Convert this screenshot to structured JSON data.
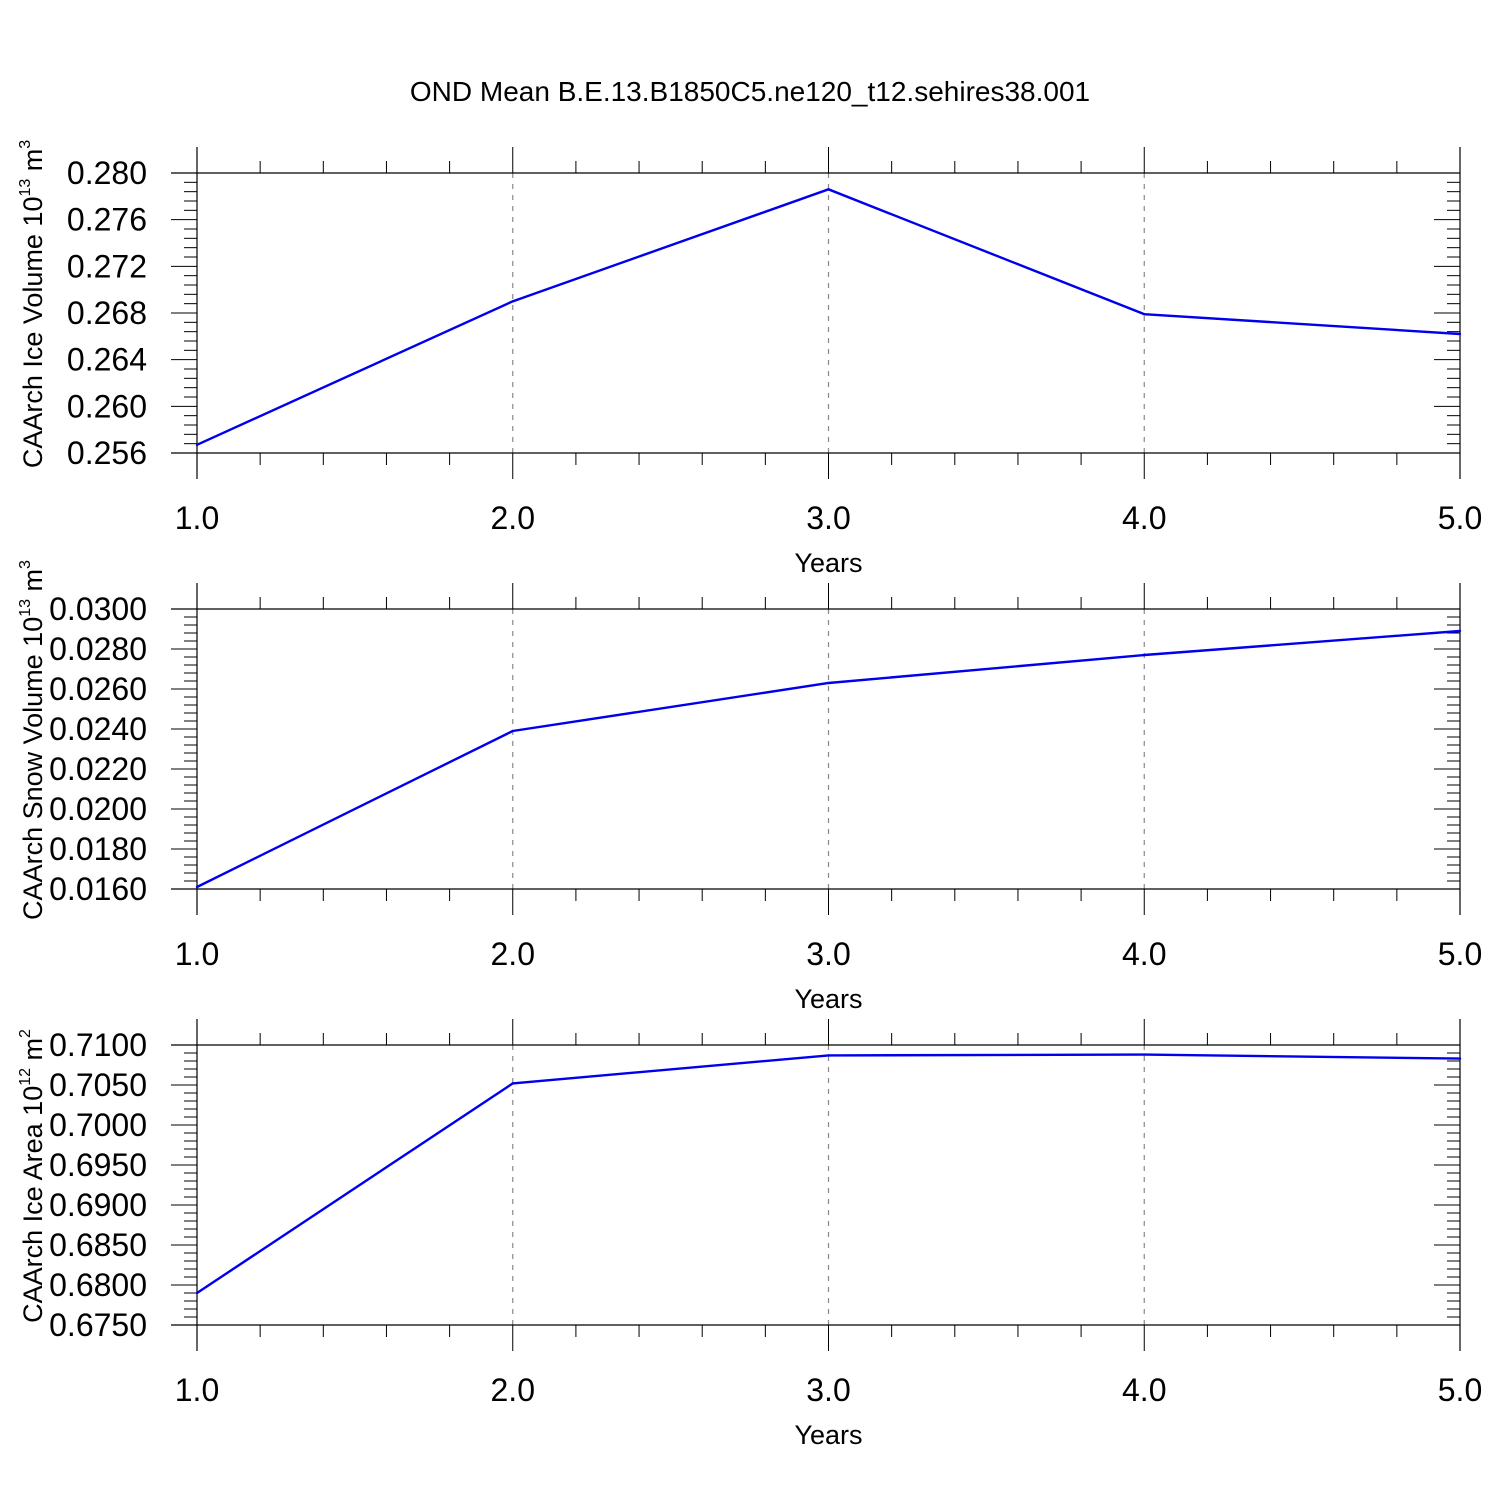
{
  "title": "OND Mean B.E.13.B1850C5.ne120_t12.sehires38.001",
  "chart_data": [
    {
      "type": "line",
      "title": "OND Mean B.E.13.B1850C5.ne120_t12.sehires38.001",
      "xlabel": "Years",
      "ylabel": {
        "text": "CAArch Ice Volume 10",
        "exp": "13",
        "unit": " m",
        "unit_exp": "3"
      },
      "x": [
        1,
        2,
        3,
        4,
        5
      ],
      "xlim": [
        1,
        5
      ],
      "xticks": [
        "1.0",
        "2.0",
        "3.0",
        "4.0",
        "5.0"
      ],
      "ylim": [
        0.256,
        0.28
      ],
      "yticks": [
        "0.256",
        "0.260",
        "0.264",
        "0.268",
        "0.272",
        "0.276",
        "0.280"
      ],
      "series": [
        {
          "values": [
            0.2567,
            0.269,
            0.2786,
            0.2679,
            0.2662
          ],
          "color": "#0000ee"
        }
      ],
      "grid": "vertical dashed at major x ticks"
    },
    {
      "type": "line",
      "xlabel": "Years",
      "ylabel": {
        "text": "CAArch Snow Volume 10",
        "exp": "13",
        "unit": " m",
        "unit_exp": "3"
      },
      "x": [
        1,
        2,
        3,
        4,
        5
      ],
      "xlim": [
        1,
        5
      ],
      "xticks": [
        "1.0",
        "2.0",
        "3.0",
        "4.0",
        "5.0"
      ],
      "ylim": [
        0.016,
        0.03
      ],
      "yticks": [
        "0.0160",
        "0.0180",
        "0.0200",
        "0.0220",
        "0.0240",
        "0.0260",
        "0.0280",
        "0.0300"
      ],
      "series": [
        {
          "values": [
            0.0161,
            0.0239,
            0.0263,
            0.0277,
            0.0289
          ],
          "color": "#0000ee"
        }
      ],
      "grid": "vertical dashed at major x ticks"
    },
    {
      "type": "line",
      "xlabel": "Years",
      "ylabel": {
        "text": "CAArch Ice Area 10",
        "exp": "12",
        "unit": " m",
        "unit_exp": "2"
      },
      "x": [
        1,
        2,
        3,
        4,
        5
      ],
      "xlim": [
        1,
        5
      ],
      "xticks": [
        "1.0",
        "2.0",
        "3.0",
        "4.0",
        "5.0"
      ],
      "ylim": [
        0.675,
        0.71
      ],
      "yticks": [
        "0.6750",
        "0.6800",
        "0.6850",
        "0.6900",
        "0.6950",
        "0.7000",
        "0.7050",
        "0.7100"
      ],
      "series": [
        {
          "values": [
            0.679,
            0.7052,
            0.7087,
            0.7088,
            0.7083
          ],
          "color": "#0000ee"
        }
      ],
      "grid": "vertical dashed at major x ticks"
    }
  ]
}
